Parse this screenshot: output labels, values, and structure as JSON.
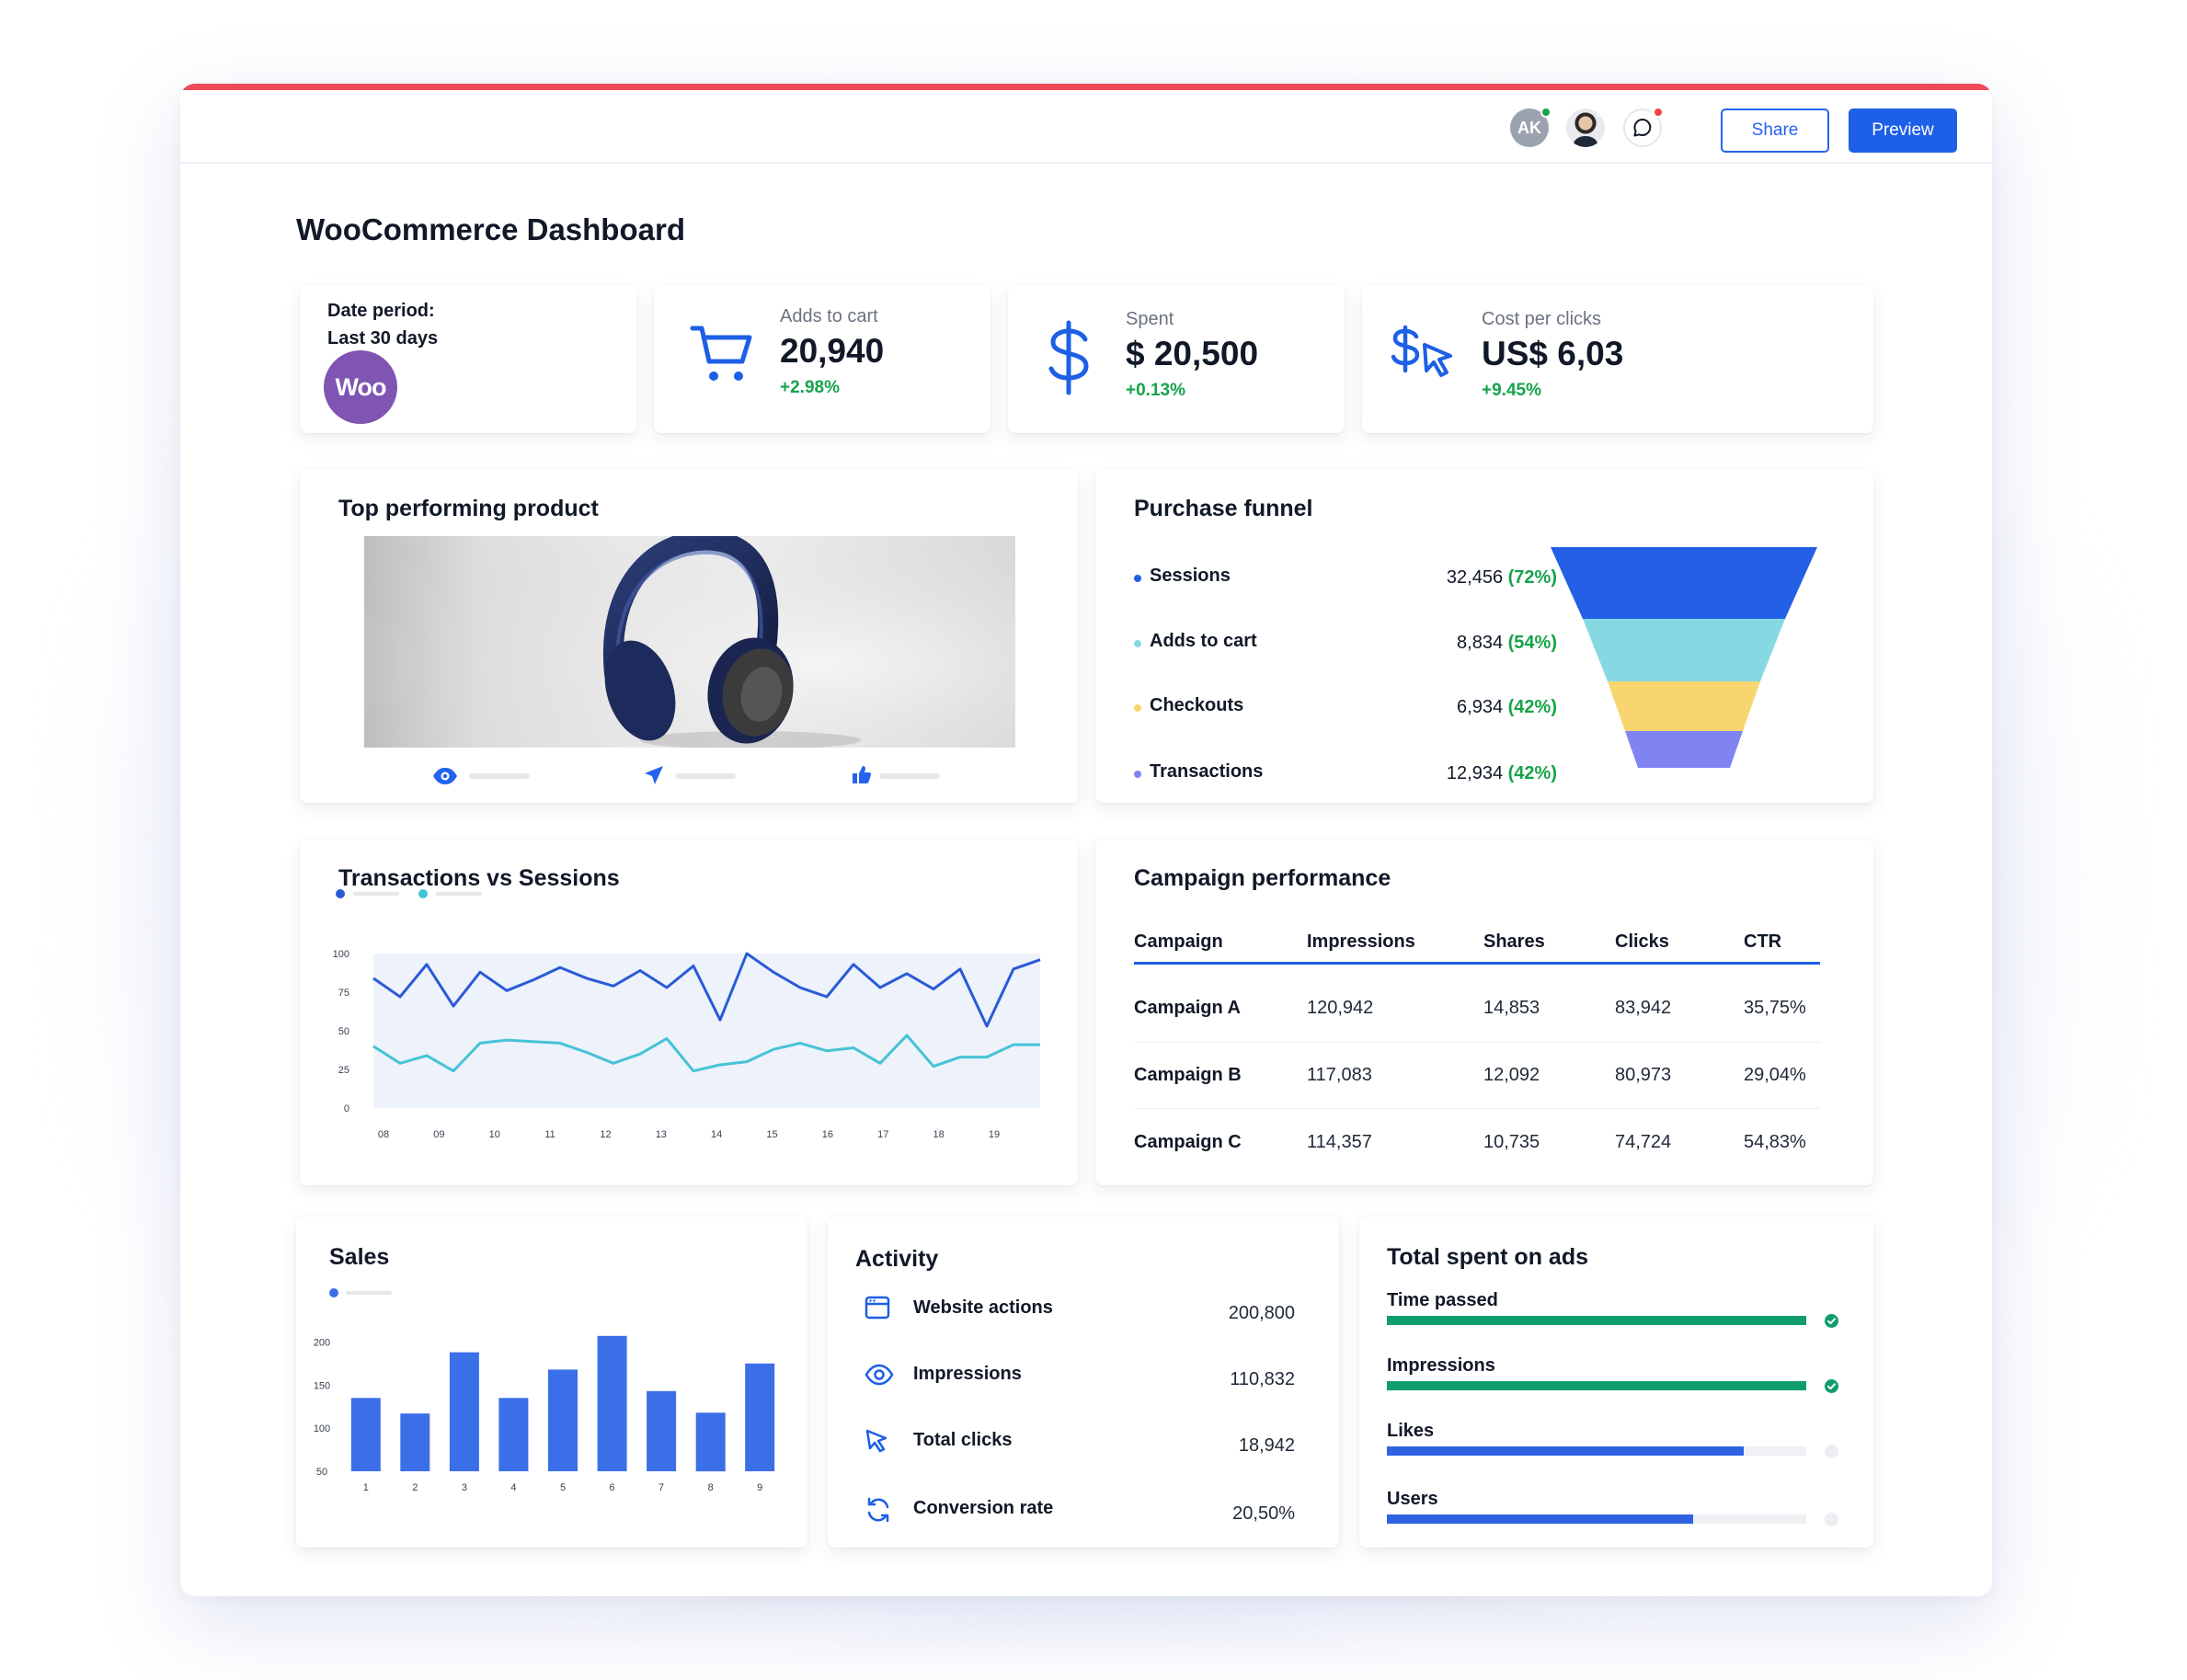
{
  "header": {
    "avatar_initials": "AK",
    "share_label": "Share",
    "preview_label": "Preview",
    "colors": {
      "accent_bar": "#ef4a5a",
      "primary": "#1d5fe6",
      "online": "#16a34a",
      "notification": "#ef4444"
    }
  },
  "page": {
    "title": "WooCommerce Dashboard"
  },
  "date_card": {
    "label": "Date period:",
    "value": "Last 30 days",
    "logo_text": "Woo"
  },
  "kpis": [
    {
      "label": "Adds to cart",
      "value": "20,940",
      "change": "+2.98%",
      "icon": "cart-icon"
    },
    {
      "label": "Spent",
      "value": "$ 20,500",
      "change": "+0.13%",
      "icon": "dollar-icon"
    },
    {
      "label": "Cost per clicks",
      "value": "US$ 6,03",
      "change": "+9.45%",
      "icon": "dollar-cursor-icon"
    }
  ],
  "top_product": {
    "title": "Top performing product",
    "stat_icons": [
      "eye-icon",
      "send-icon",
      "thumbs-up-icon"
    ]
  },
  "purchase_funnel": {
    "title": "Purchase funnel",
    "rows": [
      {
        "label": "Sessions",
        "value": "32,456",
        "pct": "(72%)",
        "color": "#2460e6"
      },
      {
        "label": "Adds to cart",
        "value": "8,834",
        "pct": "(54%)",
        "color": "#86d9e3"
      },
      {
        "label": "Checkouts",
        "value": "6,934",
        "pct": "(42%)",
        "color": "#f8d56e"
      },
      {
        "label": "Transactions",
        "value": "12,934",
        "pct": "(42%)",
        "color": "#7f84f2"
      }
    ]
  },
  "transactions_chart": {
    "title": "Transactions vs Sessions",
    "series_colors": [
      "#2a5bd7",
      "#46c3d6"
    ]
  },
  "chart_data": [
    {
      "type": "line",
      "title": "Transactions vs Sessions",
      "x_ticks": [
        "08",
        "09",
        "10",
        "11",
        "12",
        "13",
        "14",
        "15",
        "16",
        "17",
        "18",
        "19"
      ],
      "y_ticks": [
        "0",
        "25",
        "50",
        "75",
        "100"
      ],
      "ylim": [
        0,
        100
      ],
      "xlim": [
        0,
        23
      ],
      "grid": false,
      "legend": "top-left",
      "series": [
        {
          "values": [
            84,
            72,
            93,
            66,
            88,
            76,
            83,
            91,
            84,
            79,
            89,
            78,
            92,
            57,
            100,
            88,
            78,
            72,
            93,
            78,
            87,
            77,
            90,
            53,
            90,
            96
          ]
        },
        {
          "values": [
            40,
            29,
            34,
            24,
            42,
            44,
            43,
            42,
            36,
            29,
            35,
            45,
            24,
            28,
            30,
            38,
            42,
            37,
            39,
            29,
            47,
            27,
            33,
            33,
            41,
            41
          ]
        }
      ]
    },
    {
      "type": "bar",
      "title": "Sales",
      "categories": [
        "1",
        "2",
        "3",
        "4",
        "5",
        "6",
        "7",
        "8",
        "9"
      ],
      "values": [
        135,
        117,
        188,
        135,
        168,
        207,
        143,
        118,
        175
      ],
      "y_ticks": [
        "50",
        "100",
        "150",
        "200"
      ],
      "ylim": [
        50,
        210
      ],
      "legend": "top-left",
      "color": "#3b6fe8"
    }
  ],
  "campaign": {
    "title": "Campaign performance",
    "columns": [
      "Campaign",
      "Impressions",
      "Shares",
      "Clicks",
      "CTR"
    ],
    "rows": [
      [
        "Campaign A",
        "120,942",
        "14,853",
        "83,942",
        "35,75%"
      ],
      [
        "Campaign B",
        "117,083",
        "12,092",
        "80,973",
        "29,04%"
      ],
      [
        "Campaign C",
        "114,357",
        "10,735",
        "74,724",
        "54,83%"
      ]
    ]
  },
  "sales": {
    "title": "Sales"
  },
  "activity": {
    "title": "Activity",
    "rows": [
      {
        "label": "Website actions",
        "value": "200,800",
        "icon": "browser-icon"
      },
      {
        "label": "Impressions",
        "value": "110,832",
        "icon": "eye-icon"
      },
      {
        "label": "Total clicks",
        "value": "18,942",
        "icon": "cursor-icon"
      },
      {
        "label": "Conversion rate",
        "value": "20,50%",
        "icon": "refresh-icon"
      }
    ]
  },
  "total_spent": {
    "title": "Total spent on ads",
    "rows": [
      {
        "label": "Time passed",
        "progress": 1.0,
        "color": "#0f9d6b",
        "complete": true
      },
      {
        "label": "Impressions",
        "progress": 1.0,
        "color": "#0f9d6b",
        "complete": true
      },
      {
        "label": "Likes",
        "progress": 0.85,
        "color": "#2f62e3",
        "complete": false
      },
      {
        "label": "Users",
        "progress": 0.73,
        "color": "#2f62e3",
        "complete": false
      }
    ]
  }
}
